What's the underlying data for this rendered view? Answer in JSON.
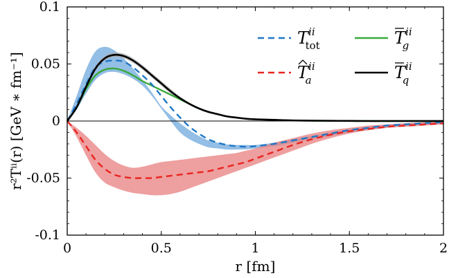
{
  "chart_data": {
    "type": "line",
    "title": "",
    "xlabel": "r [fm]",
    "ylabel": "r²Tⁱⁱ(r) [GeV ∗ fm⁻¹]",
    "xlim": [
      0,
      2
    ],
    "ylim": [
      -0.1,
      0.1
    ],
    "xticks": [
      "0",
      "0.5",
      "1",
      "1.5",
      "2"
    ],
    "yticks": [
      "0.1",
      "0.05",
      "0",
      "-0.05",
      "-0.1"
    ],
    "grid": false,
    "legend_position": "top-right",
    "x": [
      0,
      0.05,
      0.1,
      0.15,
      0.2,
      0.25,
      0.3,
      0.35,
      0.4,
      0.45,
      0.5,
      0.55,
      0.6,
      0.65,
      0.7,
      0.75,
      0.8,
      0.85,
      0.9,
      0.95,
      1.0,
      1.1,
      1.2,
      1.3,
      1.4,
      1.5,
      1.6,
      1.7,
      1.8,
      1.9,
      2.0
    ],
    "series": [
      {
        "name": "T_tot^ii",
        "legend_main": "T",
        "legend_sup": "ii",
        "legend_sub": "tot",
        "legend_accent": "",
        "color": "#1f77c4",
        "band_color": "#6fa8dc",
        "line_style": "dashed",
        "values": [
          0,
          0.015,
          0.032,
          0.047,
          0.052,
          0.053,
          0.052,
          0.047,
          0.04,
          0.032,
          0.022,
          0.012,
          0.003,
          -0.005,
          -0.011,
          -0.016,
          -0.019,
          -0.021,
          -0.022,
          -0.0225,
          -0.022,
          -0.02,
          -0.017,
          -0.014,
          -0.011,
          -0.008,
          -0.006,
          -0.004,
          -0.003,
          -0.002,
          -0.001
        ],
        "band_upper": [
          0,
          0.022,
          0.045,
          0.061,
          0.065,
          0.062,
          0.055,
          0.046,
          0.036,
          0.025,
          0.013,
          0.005,
          -0.002,
          -0.008,
          -0.013,
          -0.017,
          -0.019,
          -0.0205,
          -0.021,
          -0.021,
          -0.021,
          -0.019,
          -0.016,
          -0.013,
          -0.01,
          -0.007,
          -0.005,
          -0.003,
          -0.002,
          -0.001,
          -0.0005
        ],
        "band_lower": [
          0,
          0.01,
          0.024,
          0.036,
          0.042,
          0.043,
          0.041,
          0.037,
          0.031,
          0.022,
          0.011,
          0.0,
          -0.01,
          -0.016,
          -0.02,
          -0.023,
          -0.024,
          -0.025,
          -0.025,
          -0.0248,
          -0.024,
          -0.022,
          -0.019,
          -0.016,
          -0.013,
          -0.01,
          -0.008,
          -0.006,
          -0.004,
          -0.003,
          -0.002
        ]
      },
      {
        "name": "T_g^ii",
        "legend_main": "T",
        "legend_sup": "ii",
        "legend_sub": "g",
        "legend_accent": "bar",
        "color": "#3aa83a",
        "band_color": "",
        "line_style": "solid",
        "values": [
          0,
          0.012,
          0.028,
          0.04,
          0.045,
          0.046,
          0.044,
          0.04,
          0.035,
          0.031,
          0.027,
          0.023,
          0.019,
          0.015,
          0.011,
          0.008,
          0.006,
          0.004,
          0.003,
          0.002,
          0.0015,
          0.001,
          0.0005,
          0.0003,
          0.0002,
          0.0001,
          0.0001,
          0,
          0,
          0,
          0
        ]
      },
      {
        "name": "T_a^ii",
        "legend_main": "T",
        "legend_sup": "ii",
        "legend_sub": "a",
        "legend_accent": "hat",
        "color": "#e8241f",
        "band_color": "#e87f7f",
        "line_style": "dashed",
        "values": [
          0,
          -0.01,
          -0.022,
          -0.034,
          -0.042,
          -0.047,
          -0.049,
          -0.05,
          -0.05,
          -0.05,
          -0.049,
          -0.048,
          -0.047,
          -0.046,
          -0.045,
          -0.044,
          -0.042,
          -0.04,
          -0.038,
          -0.036,
          -0.033,
          -0.027,
          -0.021,
          -0.016,
          -0.012,
          -0.009,
          -0.007,
          -0.005,
          -0.004,
          -0.003,
          -0.002
        ],
        "band_upper": [
          0,
          -0.006,
          -0.013,
          -0.021,
          -0.029,
          -0.035,
          -0.039,
          -0.041,
          -0.04,
          -0.038,
          -0.036,
          -0.035,
          -0.034,
          -0.033,
          -0.032,
          -0.031,
          -0.03,
          -0.029,
          -0.028,
          -0.026,
          -0.024,
          -0.019,
          -0.015,
          -0.011,
          -0.008,
          -0.006,
          -0.004,
          -0.003,
          -0.002,
          -0.001,
          -0.0005
        ],
        "band_lower": [
          0,
          -0.014,
          -0.03,
          -0.045,
          -0.054,
          -0.058,
          -0.061,
          -0.063,
          -0.064,
          -0.065,
          -0.065,
          -0.064,
          -0.062,
          -0.059,
          -0.056,
          -0.053,
          -0.05,
          -0.047,
          -0.044,
          -0.041,
          -0.038,
          -0.032,
          -0.026,
          -0.02,
          -0.015,
          -0.011,
          -0.008,
          -0.006,
          -0.005,
          -0.004,
          -0.003
        ]
      },
      {
        "name": "T_q^ii",
        "legend_main": "T",
        "legend_sup": "ii",
        "legend_sub": "q",
        "legend_accent": "bar",
        "color": "#000000",
        "band_color": "#a9a9a9",
        "line_style": "solid",
        "values": [
          0,
          0.012,
          0.03,
          0.046,
          0.055,
          0.058,
          0.057,
          0.053,
          0.047,
          0.04,
          0.033,
          0.026,
          0.02,
          0.015,
          0.011,
          0.008,
          0.006,
          0.004,
          0.003,
          0.002,
          0.0015,
          0.001,
          0.0005,
          0.0003,
          0.0002,
          0.0001,
          0,
          0,
          0,
          0,
          0
        ],
        "band_upper": [
          0,
          0.013,
          0.031,
          0.048,
          0.057,
          0.06,
          0.059,
          0.055,
          0.049,
          0.042,
          0.035,
          0.028,
          0.021,
          0.016,
          0.012,
          0.009,
          0.0065,
          0.0045,
          0.0033,
          0.0023,
          0.0017,
          0.0011,
          0.0006,
          0.0004,
          0.0002,
          0.0001,
          0,
          0,
          0,
          0,
          0
        ],
        "band_lower": [
          0,
          0.011,
          0.029,
          0.044,
          0.053,
          0.056,
          0.055,
          0.051,
          0.045,
          0.038,
          0.031,
          0.024,
          0.019,
          0.014,
          0.01,
          0.007,
          0.0055,
          0.0035,
          0.0027,
          0.0017,
          0.0013,
          0.0009,
          0.0004,
          0.0002,
          0.0002,
          0.0001,
          0,
          0,
          0,
          0,
          0
        ]
      }
    ],
    "legend_order": [
      0,
      1,
      2,
      3
    ]
  }
}
